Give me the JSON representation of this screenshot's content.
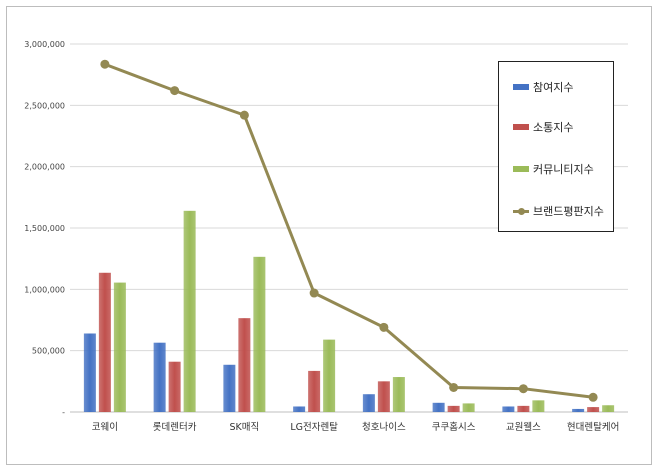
{
  "chart_data": {
    "type": "bar",
    "categories": [
      "코웨이",
      "롯데렌터카",
      "SK매직",
      "LG전자렌탈",
      "청호나이스",
      "쿠쿠홈시스",
      "교원웰스",
      "현대렌탈케어"
    ],
    "ylim": [
      0,
      3000000
    ],
    "yticks": [
      0,
      500000,
      1000000,
      1500000,
      2000000,
      2500000,
      3000000
    ],
    "ytick_labels": [
      "-",
      "500,000",
      "1,000,000",
      "1,500,000",
      "2,000,000",
      "2,500,000",
      "3,000,000"
    ],
    "grid": true,
    "legend_position": "right",
    "series": [
      {
        "name": "참여지수",
        "kind": "bar",
        "color": "#4472c4",
        "values": [
          640000,
          565000,
          385000,
          45000,
          145000,
          75000,
          45000,
          25000
        ]
      },
      {
        "name": "소통지수",
        "kind": "bar",
        "color": "#c0504d",
        "values": [
          1135000,
          410000,
          765000,
          335000,
          250000,
          50000,
          50000,
          40000
        ]
      },
      {
        "name": "커뮤니티지수",
        "kind": "bar",
        "color": "#9bbb59",
        "values": [
          1055000,
          1640000,
          1265000,
          590000,
          285000,
          70000,
          95000,
          55000
        ]
      },
      {
        "name": "브랜드평판지수",
        "kind": "line",
        "color": "#938953",
        "values": [
          2835000,
          2620000,
          2420000,
          970000,
          690000,
          200000,
          190000,
          120000
        ]
      }
    ]
  }
}
